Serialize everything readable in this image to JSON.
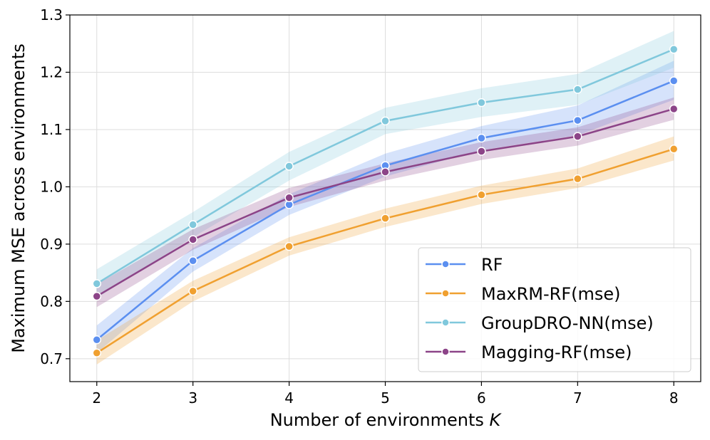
{
  "chart_data": {
    "type": "line",
    "title": "",
    "xlabel": "Number of environments",
    "xlabel_var": "K",
    "ylabel": "Maximum MSE across environments",
    "x": [
      2,
      3,
      4,
      5,
      6,
      7,
      8
    ],
    "xlim": [
      1.72,
      8.28
    ],
    "ylim": [
      0.66,
      1.3
    ],
    "yticks": [
      0.7,
      0.8,
      0.9,
      1.0,
      1.1,
      1.2,
      1.3
    ],
    "ytick_labels": [
      "0.7",
      "0.8",
      "0.9",
      "1.0",
      "1.1",
      "1.2",
      "1.3"
    ],
    "xtick_labels": [
      "2",
      "3",
      "4",
      "5",
      "6",
      "7",
      "8"
    ],
    "grid": true,
    "legend_position": "lower-right",
    "series": [
      {
        "name": "RF",
        "color": "#5b8ff0",
        "values": [
          0.733,
          0.871,
          0.969,
          1.037,
          1.085,
          1.116,
          1.185
        ],
        "band_lower": [
          0.71,
          0.852,
          0.951,
          1.018,
          1.064,
          1.09,
          1.152
        ],
        "band_upper": [
          0.758,
          0.893,
          0.987,
          1.058,
          1.106,
          1.142,
          1.22
        ]
      },
      {
        "name": "MaxRM-RF(mse)",
        "color": "#f0a030",
        "values": [
          0.71,
          0.818,
          0.896,
          0.945,
          0.986,
          1.014,
          1.066
        ],
        "band_lower": [
          0.69,
          0.8,
          0.88,
          0.93,
          0.97,
          0.998,
          1.046
        ],
        "band_upper": [
          0.732,
          0.836,
          0.912,
          0.962,
          1.002,
          1.032,
          1.088
        ]
      },
      {
        "name": "GroupDRO-NN(mse)",
        "color": "#80c8dc",
        "values": [
          0.831,
          0.934,
          1.036,
          1.115,
          1.147,
          1.17,
          1.24
        ],
        "band_lower": [
          0.806,
          0.912,
          1.011,
          1.092,
          1.122,
          1.143,
          1.208
        ],
        "band_upper": [
          0.856,
          0.956,
          1.061,
          1.138,
          1.172,
          1.197,
          1.272
        ]
      },
      {
        "name": "Magging-RF(mse)",
        "color": "#8c4488",
        "values": [
          0.809,
          0.908,
          0.981,
          1.026,
          1.062,
          1.088,
          1.136
        ],
        "band_lower": [
          0.79,
          0.89,
          0.965,
          1.011,
          1.047,
          1.072,
          1.117
        ],
        "band_upper": [
          0.83,
          0.926,
          0.998,
          1.041,
          1.078,
          1.104,
          1.156
        ]
      }
    ]
  }
}
